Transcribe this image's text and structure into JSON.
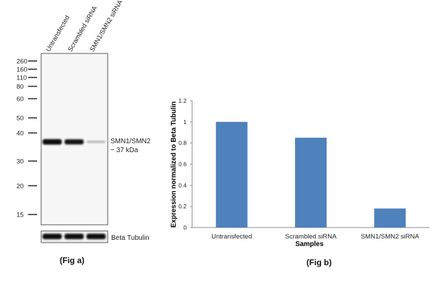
{
  "blot": {
    "lanes": [
      "Untransfected",
      "Scrambled siRNA",
      "SMN1/SMN2 siRNA"
    ],
    "markers": [
      "260",
      "160",
      "110",
      "80",
      "60",
      "50",
      "40",
      "30",
      "20",
      "15"
    ],
    "band_label_1": "SMN1/SMN2",
    "band_label_2": "~ 37 kDa",
    "band_intensity": [
      1.0,
      0.95,
      0.3
    ],
    "loading_label": "Beta Tubulin",
    "caption": "(Fig a)"
  },
  "chart_data": {
    "type": "bar",
    "categories": [
      "Untransfected",
      "Scrambled siRNA",
      "SMN1/SMN2 siRNA"
    ],
    "values": [
      1.0,
      0.85,
      0.18
    ],
    "title": "",
    "xlabel": "Samples",
    "ylabel": "Expression  normalized to Beta Tubulin",
    "ylim": [
      0,
      1.2
    ],
    "yticks": [
      "0",
      "0.2",
      "0.4",
      "0.6",
      "0.8",
      "1",
      "1.2"
    ],
    "bar_color": "#4f81bd",
    "grid": false,
    "caption": "(Fig b)"
  }
}
